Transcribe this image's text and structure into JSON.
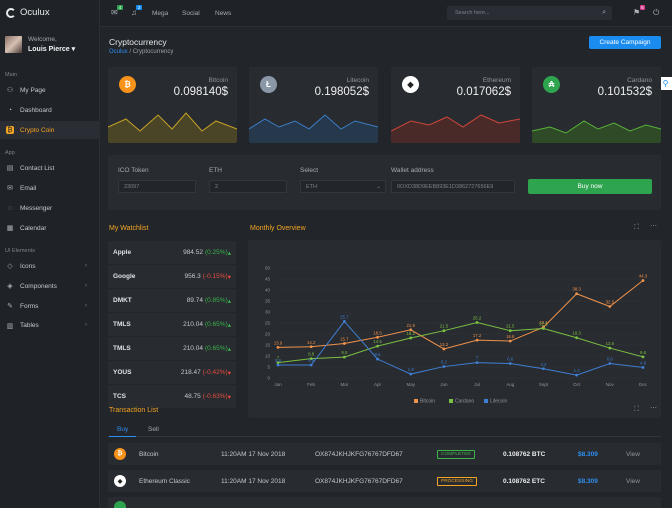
{
  "app": {
    "name": "Oculux"
  },
  "user": {
    "welcome": "Welcome,",
    "name": "Louis Pierce ▾"
  },
  "sidebar": {
    "sections": {
      "main": "Main",
      "app": "App",
      "ui": "UI Elements"
    },
    "items": [
      {
        "label": "My Page",
        "icon": "user-icon"
      },
      {
        "label": "Dashboard",
        "icon": "dashboard-icon"
      },
      {
        "label": "Crypto Coin",
        "icon": "coin-icon"
      },
      {
        "label": "Contact List",
        "icon": "contacts-icon"
      },
      {
        "label": "Email",
        "icon": "mail-icon"
      },
      {
        "label": "Messenger",
        "icon": "chat-icon"
      },
      {
        "label": "Calendar",
        "icon": "calendar-icon"
      },
      {
        "label": "Icons",
        "icon": "tag-icon"
      },
      {
        "label": "Components",
        "icon": "diamond-icon"
      },
      {
        "label": "Forms",
        "icon": "pencil-icon"
      },
      {
        "label": "Tables",
        "icon": "table-icon"
      }
    ]
  },
  "topbar": {
    "mail_badge": "4",
    "bell_badge": "2",
    "notif_badge": "5",
    "links": [
      "Mega",
      "Social",
      "News"
    ],
    "search_placeholder": "Search here..."
  },
  "page": {
    "title": "Cryptocurrency",
    "crumb_root": "Oculux",
    "crumb_current": "Cryptocurrency",
    "create_btn": "Create Campaign"
  },
  "cards": [
    {
      "name": "Bitcoin",
      "value": "0.098140$",
      "symbol": "₿",
      "color": "#f7931a",
      "line": "#c9a227",
      "fill": "#4a4526"
    },
    {
      "name": "Litecoin",
      "value": "0.198052$",
      "symbol": "Ł",
      "color": "#8a97a6",
      "line": "#3c7dc4",
      "fill": "#25384c"
    },
    {
      "name": "Ethereum",
      "value": "0.017062$",
      "symbol": "◆",
      "color": "#ffffff",
      "line": "#d0463a",
      "fill": "#4a2a28"
    },
    {
      "name": "Cardano",
      "value": "0.101532$",
      "symbol": "₳",
      "color": "#2ea44f",
      "line": "#58b23a",
      "fill": "#2f4a26"
    }
  ],
  "form": {
    "ico_label": "ICO Token",
    "ico_value": "23097",
    "eth_label": "ETH",
    "eth_value": "2",
    "select_label": "Select",
    "select_value": "ETH",
    "wallet_label": "Wallet address",
    "wallet_value": "0OXD38D9EEB893E1D3862727656E9",
    "buy_label": "Buy now"
  },
  "watchlist": {
    "title": "My Watchlist",
    "rows": [
      {
        "name": "Apple",
        "price": "984.52",
        "change": "(0.25%)",
        "dir": "up"
      },
      {
        "name": "Google",
        "price": "956.3",
        "change": "(-0.15%)",
        "dir": "dn"
      },
      {
        "name": "DMKT",
        "price": "89.74",
        "change": "(0.85%)",
        "dir": "up"
      },
      {
        "name": "TMLS",
        "price": "210.04",
        "change": "(0.65%)",
        "dir": "up"
      },
      {
        "name": "TMLS",
        "price": "210.04",
        "change": "(0.65%)",
        "dir": "up"
      },
      {
        "name": "YOUS",
        "price": "218.47",
        "change": "(-0.42%)",
        "dir": "dn"
      },
      {
        "name": "TCS",
        "price": "48.75",
        "change": "(-0.63%)",
        "dir": "dn"
      }
    ]
  },
  "overview": {
    "title": "Monthly Overview"
  },
  "chart_data": {
    "type": "line",
    "categories": [
      "Jan",
      "Feb",
      "Mar",
      "Apr",
      "May",
      "Jun",
      "Jul",
      "Aug",
      "Sept",
      "Oct",
      "Nov",
      "Dec"
    ],
    "ylim": [
      0,
      50
    ],
    "yticks": [
      0,
      5,
      10,
      15,
      20,
      25,
      30,
      35,
      40,
      45,
      50
    ],
    "series": [
      {
        "name": "Bitcoin",
        "color": "#f0924a",
        "values": [
          13.9,
          14.2,
          15.7,
          18.5,
          21.9,
          13.2,
          17.2,
          16.8,
          23.1,
          38.3,
          32.5,
          44.3
        ]
      },
      {
        "name": "Cardano",
        "color": "#7ac142",
        "values": [
          7,
          8.8,
          9.5,
          14.5,
          18.2,
          21.5,
          25.2,
          21.5,
          22.5,
          18.3,
          13.6,
          9.6
        ]
      },
      {
        "name": "Litecoin",
        "color": "#3f7fd4",
        "values": [
          5.9,
          5.9,
          25.7,
          8.6,
          1.8,
          5.2,
          7,
          6.6,
          4.2,
          1.3,
          6.6,
          4.8
        ]
      }
    ]
  },
  "transactions": {
    "title": "Transaction List",
    "tabs": [
      "Buy",
      "Sell"
    ],
    "rows": [
      {
        "coin": "Bitcoin",
        "time": "11:20AM 17 Nov 2018",
        "hash": "OX874JKHJKFG76767DFD67",
        "status": "COMPLETED",
        "amount": "0.108762 BTC",
        "usd": "$8.309",
        "action": "View",
        "symbol": "₿",
        "color": "#f7931a",
        "status_color": "#3ab54a"
      },
      {
        "coin": "Ethereum Classic",
        "time": "11:20AM 17 Nov 2018",
        "hash": "OX874JKHJKFG76767DFD67",
        "status": "PROCESSING",
        "amount": "0.108762 ETC",
        "usd": "$8.309",
        "action": "View",
        "symbol": "◆",
        "color": "#3a3d42",
        "status_color": "#f4a623"
      }
    ]
  }
}
